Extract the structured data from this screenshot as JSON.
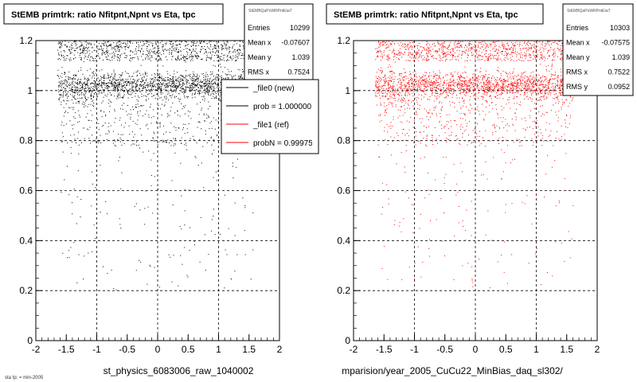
{
  "left": {
    "title": "StEMB primtrk: ratio Nfitpnt,Npnt vs Eta, tpc",
    "stats_title": "StEMBQaPoWRPntEtaT",
    "stats": [
      {
        "label": "Entries",
        "value": "10299"
      },
      {
        "label": "Mean x",
        "value": "-0.07607"
      },
      {
        "label": "Mean y",
        "value": "1.039"
      },
      {
        "label": "RMS x",
        "value": "0.7524"
      }
    ],
    "legend": [
      {
        "label": "_file0 (new)",
        "color": "#000000"
      },
      {
        "label": "prob = 1.000000",
        "color": "#000000"
      },
      {
        "label": "_file1 (ref)",
        "color": "#ff0000"
      },
      {
        "label": "probN = 0.999750",
        "color": "#ff0000"
      }
    ],
    "xlabel": "st_physics_6083006_raw_1040002",
    "point_color": "#000000"
  },
  "right": {
    "title": "StEMB primtrk: ratio Nfitpnt,Npnt vs Eta, tpc",
    "stats_title": "StEMBQaPoWRPntEtaT",
    "stats": [
      {
        "label": "Entries",
        "value": "10303"
      },
      {
        "label": "Mean x",
        "value": "-0.07575"
      },
      {
        "label": "Mean y",
        "value": "1.039"
      },
      {
        "label": "RMS x",
        "value": "0.7522"
      },
      {
        "label": "RMS y",
        "value": "0.0952"
      }
    ],
    "xlabel": "mparision/year_2005_CuCu22_MinBias_daq_sl302/",
    "point_color": "#ff0000"
  },
  "footer": "sta tp: = min-2005",
  "chart_data": [
    {
      "type": "scatter",
      "title": "StEMB primtrk: ratio Nfitpnt,Npnt vs Eta, tpc",
      "xlabel": "st_physics_6083006_raw_1040002",
      "ylabel": "",
      "xlim": [
        -2,
        2
      ],
      "ylim": [
        0,
        1.2
      ],
      "xticks": [
        "-2",
        "-1.5",
        "-1",
        "-0.5",
        "0",
        "0.5",
        "1",
        "1.5",
        "2"
      ],
      "yticks": [
        "0",
        "0.2",
        "0.4",
        "0.6",
        "0.8",
        "1",
        "1.2"
      ],
      "grid": true,
      "series": [
        {
          "name": "_file0 (new)",
          "entries": 10299,
          "mean_x": -0.07607,
          "mean_y": 1.039,
          "rms_x": 0.7524,
          "x_range": [
            -1.6,
            1.6
          ],
          "dense_band_y": [
            0.97,
            1.08
          ]
        }
      ]
    },
    {
      "type": "scatter",
      "title": "StEMB primtrk: ratio Nfitpnt,Npnt vs Eta, tpc",
      "xlabel": "mparision/year_2005_CuCu22_MinBias_daq_sl302/",
      "ylabel": "",
      "xlim": [
        -2,
        2
      ],
      "ylim": [
        0,
        1.2
      ],
      "xticks": [
        "-2",
        "-1.5",
        "-1",
        "-0.5",
        "0",
        "0.5",
        "1",
        "1.5",
        "2"
      ],
      "yticks": [
        "0",
        "0.2",
        "0.4",
        "0.6",
        "0.8",
        "1",
        "1.2"
      ],
      "grid": true,
      "series": [
        {
          "name": "_file1 (ref)",
          "entries": 10303,
          "mean_x": -0.07575,
          "mean_y": 1.039,
          "rms_x": 0.7522,
          "rms_y": 0.0952,
          "x_range": [
            -1.6,
            1.6
          ],
          "dense_band_y": [
            0.97,
            1.08
          ]
        }
      ]
    }
  ]
}
